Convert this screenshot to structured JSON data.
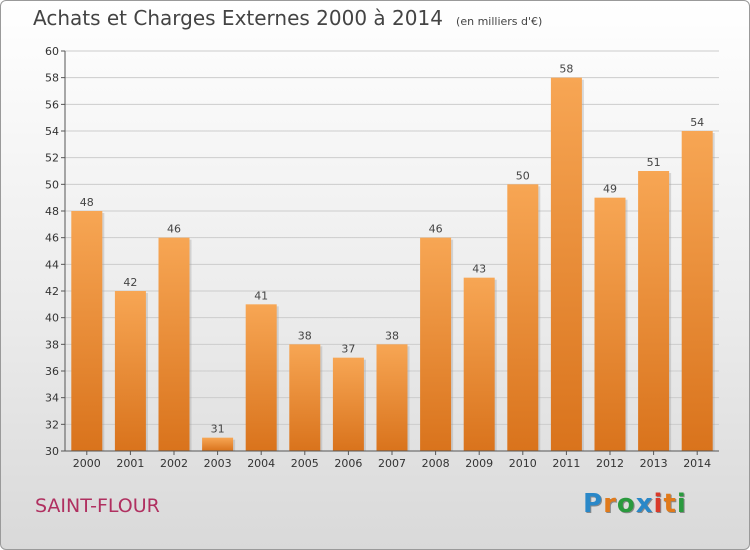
{
  "header": {
    "title": "Achats et Charges Externes 2000 à 2014",
    "unit": "(en milliers d'€)"
  },
  "footer": {
    "city": "SAINT-FLOUR",
    "brand": [
      "P",
      "r",
      "o",
      "x",
      "i",
      "t",
      "i"
    ]
  },
  "colors": {
    "bar_light": "#f7a654",
    "bar_dark": "#d9731c",
    "grid": "#cccccc",
    "axis": "#555555",
    "city": "#b03060",
    "brand": [
      "#2a88c8",
      "#e07a1b",
      "#2a9a3e",
      "#2a88c8",
      "#d93a2a",
      "#e07a1b",
      "#2a9a3e"
    ]
  },
  "chart_data": {
    "type": "bar",
    "title": "Achats et Charges Externes 2000 à 2014",
    "unit": "(en milliers d'€)",
    "categories": [
      "2000",
      "2001",
      "2002",
      "2003",
      "2004",
      "2005",
      "2006",
      "2007",
      "2008",
      "2009",
      "2010",
      "2011",
      "2012",
      "2013",
      "2014"
    ],
    "values": [
      48,
      42,
      46,
      31,
      41,
      38,
      37,
      38,
      46,
      43,
      50,
      58,
      49,
      51,
      54
    ],
    "ylim": [
      30,
      60
    ],
    "yticks": [
      30,
      32,
      34,
      36,
      38,
      40,
      42,
      44,
      46,
      48,
      50,
      52,
      54,
      56,
      58,
      60
    ],
    "grid": true
  }
}
